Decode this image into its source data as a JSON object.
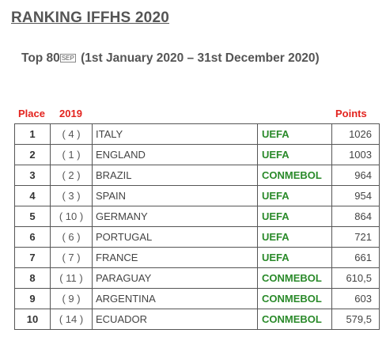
{
  "title": "RANKING IFFHS 2020",
  "subtitle": {
    "prefix": "Top 80",
    "sep_glyph": "SEP",
    "rest": " (1st January 2020 – 31st December 2020)"
  },
  "headers": {
    "place": "Place",
    "prev": "2019",
    "points": "Points"
  },
  "colors": {
    "header_red": "#e3231e",
    "confed_green": "#2a8a2a"
  },
  "rows": [
    {
      "place": "1",
      "prev": "( 4 )",
      "country": "ITALY",
      "confed": "UEFA",
      "points": "1026"
    },
    {
      "place": "2",
      "prev": "( 1 )",
      "country": "ENGLAND",
      "confed": "UEFA",
      "points": "1003"
    },
    {
      "place": "3",
      "prev": "( 2 )",
      "country": "BRAZIL",
      "confed": "CONMEBOL",
      "points": "964"
    },
    {
      "place": "4",
      "prev": "( 3 )",
      "country": "SPAIN",
      "confed": "UEFA",
      "points": "954"
    },
    {
      "place": "5",
      "prev": "( 10 )",
      "country": "GERMANY",
      "confed": "UEFA",
      "points": "864"
    },
    {
      "place": "6",
      "prev": "( 6 )",
      "country": "PORTUGAL",
      "confed": "UEFA",
      "points": "721"
    },
    {
      "place": "7",
      "prev": "( 7 )",
      "country": "FRANCE",
      "confed": "UEFA",
      "points": "661"
    },
    {
      "place": "8",
      "prev": "( 11 )",
      "country": "PARAGUAY",
      "confed": "CONMEBOL",
      "points": "610,5"
    },
    {
      "place": "9",
      "prev": "( 9 )",
      "country": "ARGENTINA",
      "confed": "CONMEBOL",
      "points": "603"
    },
    {
      "place": "10",
      "prev": "( 14 )",
      "country": "ECUADOR",
      "confed": "CONMEBOL",
      "points": "579,5"
    }
  ]
}
